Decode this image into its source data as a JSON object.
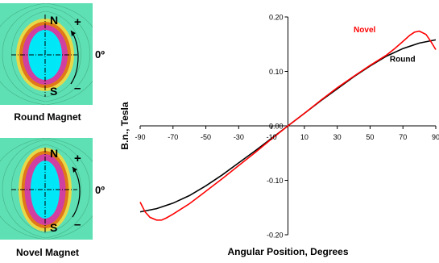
{
  "figure": {
    "top_panel_label": "Round Magnet",
    "bottom_panel_label": "Novel Magnet",
    "pole_north": "N",
    "pole_south": "S",
    "sign_plus": "+",
    "sign_minus": "–",
    "angle_label": "0º",
    "colors": {
      "field_background": "#5ee0b4",
      "core": "#00e8f8",
      "ring_inner": "#d040a0",
      "ring_outer": "#e07818",
      "ring_edge": "#e8d848"
    }
  },
  "chart_data": {
    "type": "line",
    "xlabel": "Angular Position, Degrees",
    "ylabel": "B.n., Tesla",
    "xlim": [
      -90,
      90
    ],
    "ylim": [
      -0.2,
      0.2
    ],
    "x_ticks": [
      -90,
      -70,
      -50,
      -30,
      -10,
      10,
      30,
      50,
      70,
      90
    ],
    "x_tick_labels": [
      "-90",
      "-70",
      "-50",
      "-30",
      "-10",
      "10",
      "30",
      "50",
      "70",
      "90"
    ],
    "y_ticks": [
      -0.2,
      -0.1,
      0.0,
      0.1,
      0.2
    ],
    "y_tick_labels": [
      "-0.20",
      "-0.10",
      "0.00",
      "0.10",
      "0.20"
    ],
    "grid": false,
    "series": [
      {
        "name": "Novel",
        "color": "#ff0000",
        "x": [
          -90,
          -87,
          -84,
          -80,
          -77,
          -74,
          -70,
          -60,
          -50,
          -40,
          -30,
          -20,
          -10,
          0,
          10,
          20,
          30,
          40,
          50,
          60,
          65,
          70,
          74,
          77,
          80,
          84,
          87,
          90
        ],
        "y": [
          -0.14,
          -0.158,
          -0.168,
          -0.173,
          -0.173,
          -0.169,
          -0.162,
          -0.143,
          -0.12,
          -0.097,
          -0.073,
          -0.049,
          -0.024,
          0.0,
          0.023,
          0.047,
          0.07,
          0.091,
          0.111,
          0.13,
          0.142,
          0.155,
          0.166,
          0.172,
          0.174,
          0.168,
          0.155,
          0.14
        ]
      },
      {
        "name": "Round",
        "color": "#000000",
        "x": [
          -90,
          -80,
          -70,
          -60,
          -50,
          -40,
          -30,
          -20,
          -10,
          0,
          10,
          20,
          30,
          40,
          50,
          60,
          70,
          80,
          90
        ],
        "y": [
          -0.158,
          -0.152,
          -0.142,
          -0.128,
          -0.11,
          -0.09,
          -0.068,
          -0.046,
          -0.023,
          0.0,
          0.023,
          0.046,
          0.068,
          0.09,
          0.11,
          0.128,
          0.142,
          0.152,
          0.158
        ]
      }
    ]
  }
}
